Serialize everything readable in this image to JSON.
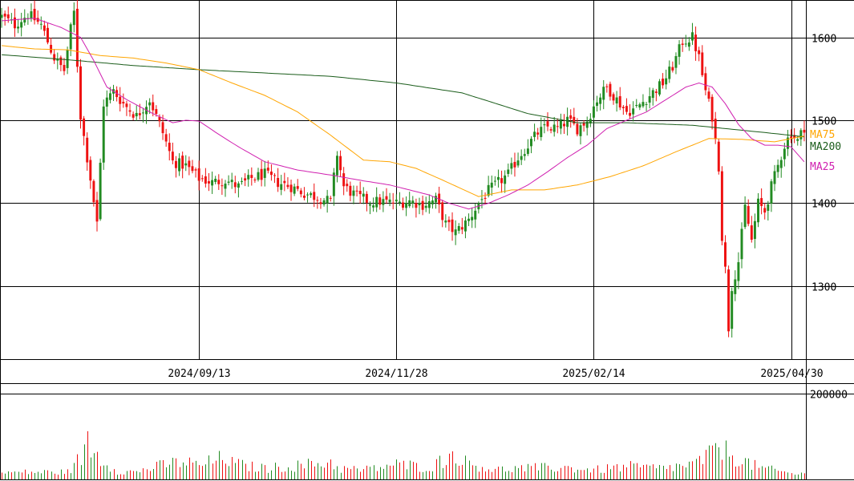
{
  "chart_data": {
    "type": "candlestick",
    "colors": {
      "up": "#228B22",
      "down": "#EE1111",
      "ma25": "#D020B0",
      "ma75": "#FFA500",
      "ma200": "#1A5C1A",
      "volume": "#228B22",
      "volume_down": "#EE1111",
      "grid": "#000000"
    },
    "price_axis": {
      "ylim": [
        1212,
        1645
      ],
      "ticks": [
        {
          "value": 1300,
          "label": "1300"
        },
        {
          "value": 1400,
          "label": "1400"
        },
        {
          "value": 1500,
          "label": "1500"
        },
        {
          "value": 1600,
          "label": "1600"
        }
      ]
    },
    "volume_axis": {
      "ylim": [
        0,
        225000
      ],
      "ticks": [
        {
          "value": 200000,
          "label": "200000"
        }
      ]
    },
    "date_labels": [
      {
        "index": 60,
        "label": "2024/09/13"
      },
      {
        "index": 120,
        "label": "2024/11/28"
      },
      {
        "index": 180,
        "label": "2025/02/14"
      },
      {
        "index": 240,
        "label": "2025/04/30"
      }
    ],
    "legend": [
      {
        "name": "MA75",
        "color": "#FFA500"
      },
      {
        "name": "MA200",
        "color": "#1A5C1A"
      },
      {
        "name": "MA25",
        "color": "#D020B0"
      }
    ],
    "anchors": [
      [
        0,
        1625
      ],
      [
        4,
        1615
      ],
      [
        8,
        1628
      ],
      [
        12,
        1615
      ],
      [
        16,
        1575
      ],
      [
        19,
        1560
      ],
      [
        21,
        1610
      ],
      [
        22,
        1630
      ],
      [
        24,
        1505
      ],
      [
        27,
        1430
      ],
      [
        29,
        1375
      ],
      [
        31,
        1520
      ],
      [
        34,
        1535
      ],
      [
        37,
        1520
      ],
      [
        41,
        1505
      ],
      [
        45,
        1525
      ],
      [
        49,
        1485
      ],
      [
        52,
        1450
      ],
      [
        56,
        1445
      ],
      [
        60,
        1430
      ],
      [
        64,
        1425
      ],
      [
        68,
        1428
      ],
      [
        72,
        1420
      ],
      [
        76,
        1430
      ],
      [
        80,
        1435
      ],
      [
        84,
        1425
      ],
      [
        88,
        1420
      ],
      [
        92,
        1412
      ],
      [
        96,
        1407
      ],
      [
        100,
        1402
      ],
      [
        102,
        1460
      ],
      [
        104,
        1420
      ],
      [
        108,
        1408
      ],
      [
        112,
        1402
      ],
      [
        116,
        1402
      ],
      [
        120,
        1400
      ],
      [
        124,
        1403
      ],
      [
        128,
        1398
      ],
      [
        132,
        1404
      ],
      [
        135,
        1375
      ],
      [
        138,
        1365
      ],
      [
        142,
        1380
      ],
      [
        145,
        1400
      ],
      [
        148,
        1415
      ],
      [
        151,
        1425
      ],
      [
        154,
        1435
      ],
      [
        157,
        1455
      ],
      [
        160,
        1470
      ],
      [
        163,
        1485
      ],
      [
        166,
        1492
      ],
      [
        169,
        1490
      ],
      [
        172,
        1500
      ],
      [
        175,
        1490
      ],
      [
        178,
        1500
      ],
      [
        181,
        1525
      ],
      [
        184,
        1540
      ],
      [
        187,
        1525
      ],
      [
        190,
        1510
      ],
      [
        193,
        1515
      ],
      [
        197,
        1530
      ],
      [
        201,
        1545
      ],
      [
        204,
        1565
      ],
      [
        207,
        1595
      ],
      [
        210,
        1600
      ],
      [
        212,
        1575
      ],
      [
        214,
        1535
      ],
      [
        216,
        1505
      ],
      [
        218,
        1445
      ],
      [
        219,
        1360
      ],
      [
        220,
        1320
      ],
      [
        221,
        1250
      ],
      [
        222,
        1300
      ],
      [
        224,
        1330
      ],
      [
        226,
        1395
      ],
      [
        228,
        1355
      ],
      [
        230,
        1400
      ],
      [
        232,
        1390
      ],
      [
        234,
        1420
      ],
      [
        236,
        1445
      ],
      [
        238,
        1470
      ],
      [
        240,
        1485
      ],
      [
        242,
        1475
      ],
      [
        244,
        1492
      ]
    ],
    "volume_anchors": [
      [
        0,
        16000
      ],
      [
        10,
        17000
      ],
      [
        20,
        17000
      ],
      [
        25,
        60000
      ],
      [
        26,
        95000
      ],
      [
        27,
        72000
      ],
      [
        30,
        48000
      ],
      [
        35,
        20000
      ],
      [
        40,
        17000
      ],
      [
        50,
        35000
      ],
      [
        55,
        42000
      ],
      [
        60,
        32000
      ],
      [
        68,
        52000
      ],
      [
        70,
        38000
      ],
      [
        75,
        30000
      ],
      [
        80,
        26000
      ],
      [
        90,
        32000
      ],
      [
        100,
        40000
      ],
      [
        103,
        25000
      ],
      [
        110,
        22000
      ],
      [
        120,
        35000
      ],
      [
        130,
        28000
      ],
      [
        138,
        62000
      ],
      [
        141,
        40000
      ],
      [
        150,
        22000
      ],
      [
        155,
        25000
      ],
      [
        170,
        28000
      ],
      [
        180,
        22000
      ],
      [
        190,
        30000
      ],
      [
        200,
        26000
      ],
      [
        210,
        34000
      ],
      [
        215,
        55000
      ],
      [
        218,
        85000
      ],
      [
        220,
        65000
      ],
      [
        225,
        45000
      ],
      [
        230,
        28000
      ],
      [
        240,
        14000
      ],
      [
        244,
        12000
      ]
    ],
    "ma200_anchors": [
      [
        0,
        1579
      ],
      [
        20,
        1573
      ],
      [
        40,
        1566
      ],
      [
        60,
        1561
      ],
      [
        80,
        1557
      ],
      [
        100,
        1553
      ],
      [
        120,
        1545
      ],
      [
        140,
        1533
      ],
      [
        160,
        1508
      ],
      [
        175,
        1497
      ],
      [
        190,
        1497
      ],
      [
        210,
        1494
      ],
      [
        225,
        1488
      ],
      [
        235,
        1484
      ],
      [
        244,
        1480
      ]
    ],
    "ma75_anchors": [
      [
        0,
        1590
      ],
      [
        10,
        1586
      ],
      [
        20,
        1585
      ],
      [
        30,
        1578
      ],
      [
        40,
        1575
      ],
      [
        50,
        1569
      ],
      [
        60,
        1561
      ],
      [
        70,
        1545
      ],
      [
        80,
        1530
      ],
      [
        90,
        1510
      ],
      [
        100,
        1482
      ],
      [
        110,
        1452
      ],
      [
        118,
        1450
      ],
      [
        126,
        1442
      ],
      [
        134,
        1428
      ],
      [
        145,
        1408
      ],
      [
        155,
        1416
      ],
      [
        165,
        1416
      ],
      [
        175,
        1422
      ],
      [
        185,
        1432
      ],
      [
        195,
        1445
      ],
      [
        205,
        1462
      ],
      [
        215,
        1478
      ],
      [
        225,
        1477
      ],
      [
        235,
        1474
      ],
      [
        244,
        1481
      ]
    ],
    "ma25_anchors": [
      [
        0,
        1620
      ],
      [
        10,
        1623
      ],
      [
        18,
        1612
      ],
      [
        24,
        1600
      ],
      [
        28,
        1572
      ],
      [
        32,
        1540
      ],
      [
        38,
        1525
      ],
      [
        46,
        1508
      ],
      [
        52,
        1497
      ],
      [
        56,
        1500
      ],
      [
        60,
        1499
      ],
      [
        66,
        1483
      ],
      [
        72,
        1468
      ],
      [
        80,
        1450
      ],
      [
        90,
        1440
      ],
      [
        100,
        1434
      ],
      [
        110,
        1427
      ],
      [
        118,
        1422
      ],
      [
        124,
        1416
      ],
      [
        130,
        1410
      ],
      [
        136,
        1400
      ],
      [
        142,
        1393
      ],
      [
        148,
        1400
      ],
      [
        154,
        1410
      ],
      [
        160,
        1422
      ],
      [
        166,
        1438
      ],
      [
        172,
        1455
      ],
      [
        178,
        1470
      ],
      [
        184,
        1490
      ],
      [
        190,
        1500
      ],
      [
        196,
        1510
      ],
      [
        202,
        1525
      ],
      [
        208,
        1540
      ],
      [
        212,
        1545
      ],
      [
        216,
        1540
      ],
      [
        220,
        1520
      ],
      [
        224,
        1495
      ],
      [
        228,
        1478
      ],
      [
        232,
        1470
      ],
      [
        236,
        1470
      ],
      [
        240,
        1468
      ],
      [
        244,
        1450
      ]
    ]
  }
}
